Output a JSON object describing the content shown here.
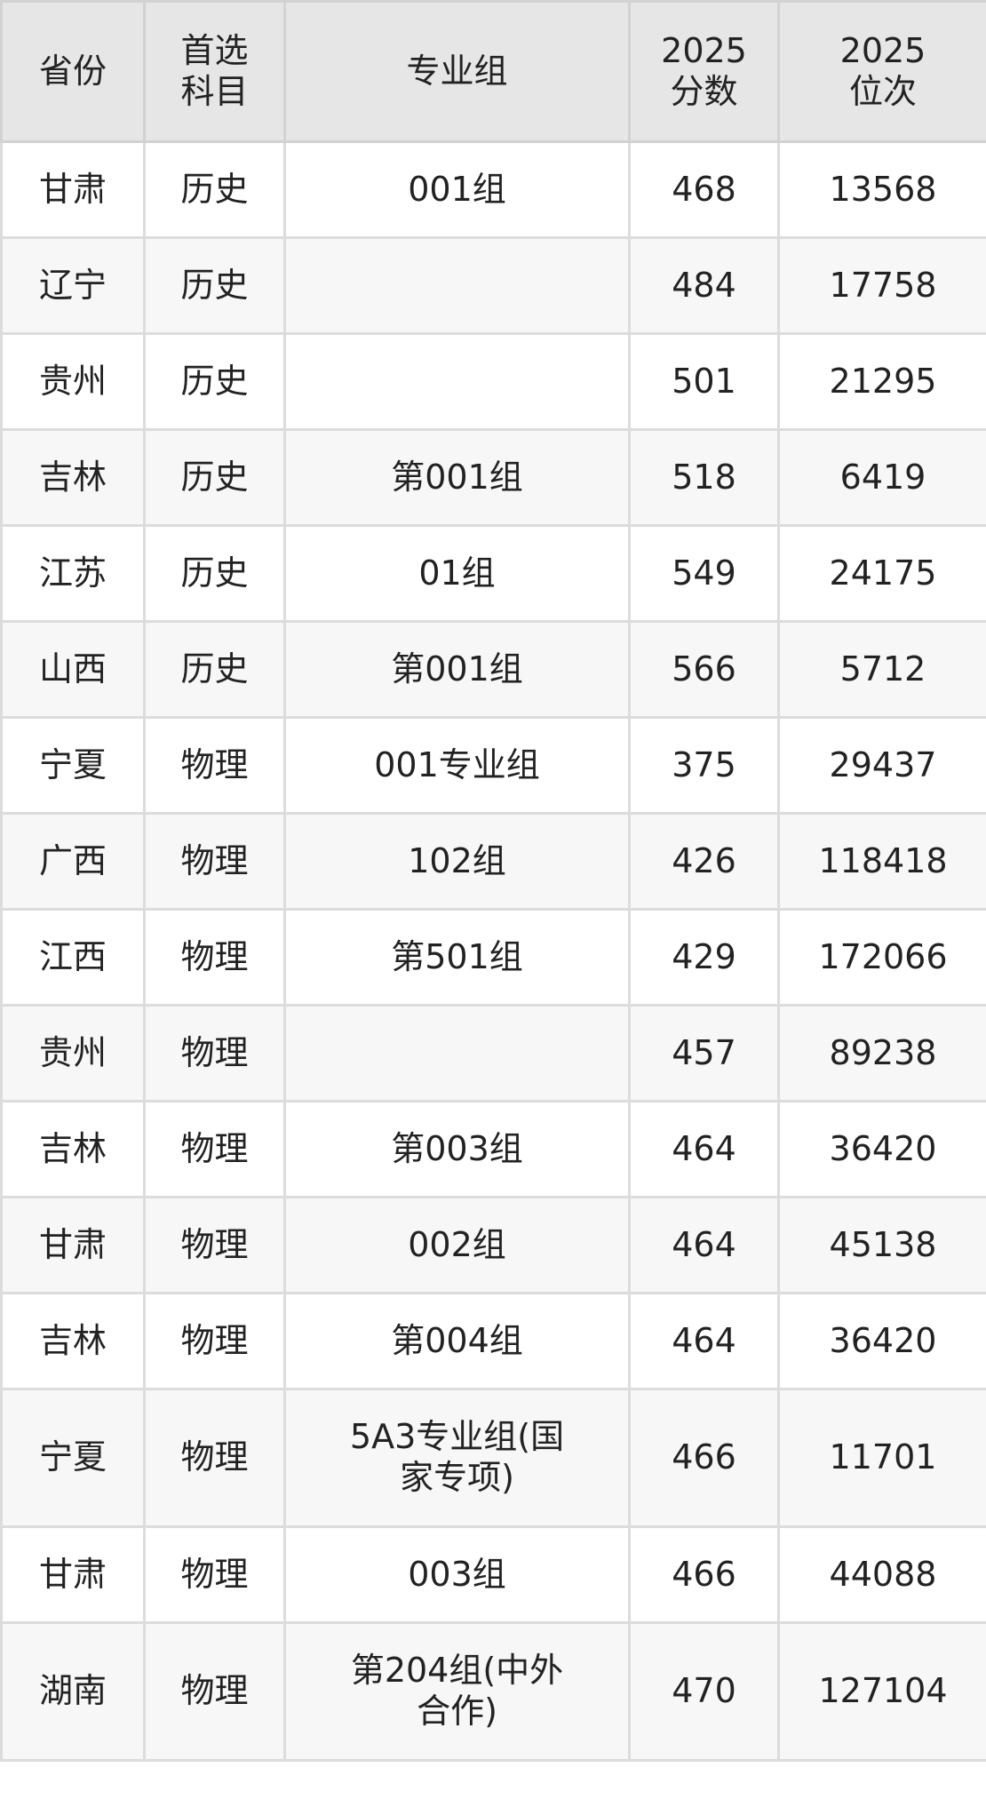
{
  "headers": [
    "省份",
    "首选\n科目",
    "专业组",
    "2025\n分数",
    "2025\n位次"
  ],
  "rows": [
    [
      "甘肃",
      "历史",
      "001组",
      "468",
      "13568"
    ],
    [
      "辽宁",
      "历史",
      "",
      "484",
      "17758"
    ],
    [
      "贵州",
      "历史",
      "",
      "501",
      "21295"
    ],
    [
      "吉林",
      "历史",
      "第001组",
      "518",
      "6419"
    ],
    [
      "江苏",
      "历史",
      "01组",
      "549",
      "24175"
    ],
    [
      "山西",
      "历史",
      "第001组",
      "566",
      "5712"
    ],
    [
      "宁夏",
      "物理",
      "001专业组",
      "375",
      "29437"
    ],
    [
      "广西",
      "物理",
      "102组",
      "426",
      "118418"
    ],
    [
      "江西",
      "物理",
      "第501组",
      "429",
      "172066"
    ],
    [
      "贵州",
      "物理",
      "",
      "457",
      "89238"
    ],
    [
      "吉林",
      "物理",
      "第003组",
      "464",
      "36420"
    ],
    [
      "甘肃",
      "物理",
      "002组",
      "464",
      "45138"
    ],
    [
      "吉林",
      "物理",
      "第004组",
      "464",
      "36420"
    ],
    [
      "宁夏",
      "物理",
      "5A3专业组(国家专项)",
      "466",
      "11701"
    ],
    [
      "甘肃",
      "物理",
      "003组",
      "466",
      "44088"
    ],
    [
      "湖南",
      "物理",
      "第204组(中外合作)",
      "470",
      "127104"
    ]
  ]
}
